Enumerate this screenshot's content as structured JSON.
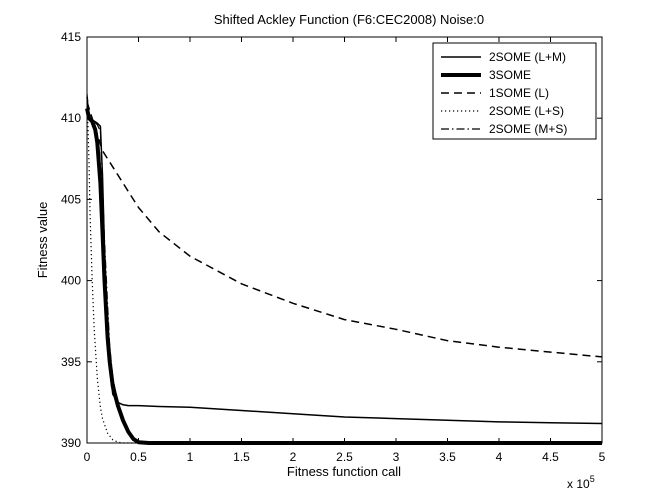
{
  "chart_data": {
    "type": "line",
    "title": "Shifted Ackley Function (F6:CEC2008) Noise:0",
    "xlabel": "Fitness function call",
    "ylabel": "Fitness value",
    "x_multiplier_label": "x 10",
    "x_multiplier_exponent": "5",
    "xlim": [
      0,
      5
    ],
    "ylim": [
      390,
      415
    ],
    "xticks": [
      0,
      0.5,
      1,
      1.5,
      2,
      2.5,
      3,
      3.5,
      4,
      4.5,
      5
    ],
    "xtick_labels": [
      "0",
      "0.5",
      "1",
      "1.5",
      "2",
      "2.5",
      "3",
      "3.5",
      "4",
      "4.5",
      "5"
    ],
    "yticks": [
      390,
      395,
      400,
      405,
      410,
      415
    ],
    "ytick_labels": [
      "390",
      "395",
      "400",
      "405",
      "410",
      "415"
    ],
    "legend_position": "top-right",
    "series": [
      {
        "name": "2SOME (L+M)",
        "style": "solid-thin",
        "x": [
          0,
          0.02,
          0.05,
          0.1,
          0.13,
          0.15,
          0.17,
          0.2,
          0.22,
          0.25,
          0.3,
          0.35,
          0.4,
          0.5,
          0.7,
          1,
          1.5,
          2,
          2.5,
          3,
          3.5,
          4,
          4.5,
          5
        ],
        "y": [
          411.3,
          410.0,
          409.9,
          409.7,
          409.5,
          406.5,
          402.0,
          397.0,
          394.5,
          393.0,
          392.5,
          392.35,
          392.3,
          392.3,
          392.25,
          392.2,
          392.0,
          391.8,
          391.6,
          391.5,
          391.4,
          391.3,
          391.25,
          391.2
        ]
      },
      {
        "name": "3SOME",
        "style": "solid-thick",
        "x": [
          0,
          0.02,
          0.05,
          0.08,
          0.1,
          0.13,
          0.15,
          0.17,
          0.2,
          0.22,
          0.25,
          0.3,
          0.35,
          0.4,
          0.45,
          0.5,
          0.6,
          1,
          2,
          3,
          4,
          5
        ],
        "y": [
          410.6,
          410.0,
          409.8,
          409.3,
          408.5,
          406.0,
          403.0,
          400.0,
          396.5,
          395.0,
          393.5,
          392.3,
          391.4,
          390.7,
          390.25,
          390.05,
          390.0,
          390.0,
          390.0,
          390.0,
          390.0,
          390.0
        ]
      },
      {
        "name": "1SOME (L)",
        "style": "dashed",
        "x": [
          0,
          0.05,
          0.1,
          0.15,
          0.2,
          0.3,
          0.4,
          0.5,
          0.7,
          1,
          1.5,
          2,
          2.5,
          3,
          3.5,
          4,
          4.5,
          5
        ],
        "y": [
          411.0,
          410.0,
          409.0,
          408.0,
          407.5,
          406.5,
          405.5,
          404.5,
          403.0,
          401.5,
          399.8,
          398.6,
          397.6,
          397.0,
          396.3,
          395.9,
          395.6,
          395.3
        ]
      },
      {
        "name": "2SOME (L+S)",
        "style": "dotted",
        "x": [
          0,
          0.01,
          0.02,
          0.03,
          0.05,
          0.07,
          0.1,
          0.13,
          0.15,
          0.2,
          0.25,
          0.3,
          0.35,
          1,
          5
        ],
        "y": [
          410.5,
          409.5,
          407.0,
          404.0,
          400.0,
          397.0,
          394.0,
          392.2,
          391.5,
          390.6,
          390.2,
          390.05,
          390.0,
          390.0,
          390.0
        ]
      },
      {
        "name": "2SOME (M+S)",
        "style": "dashdot",
        "x": [
          0,
          0.02,
          0.05,
          0.1,
          0.13,
          0.15,
          0.17,
          0.2,
          0.22,
          0.25,
          0.3,
          0.35,
          0.4,
          0.45,
          0.5,
          0.6,
          1,
          5
        ],
        "y": [
          411.5,
          410.2,
          409.9,
          409.6,
          409.2,
          406.0,
          402.5,
          398.5,
          396.0,
          394.0,
          392.5,
          391.5,
          390.8,
          390.3,
          390.1,
          390.0,
          390.0,
          390.0
        ]
      }
    ]
  }
}
